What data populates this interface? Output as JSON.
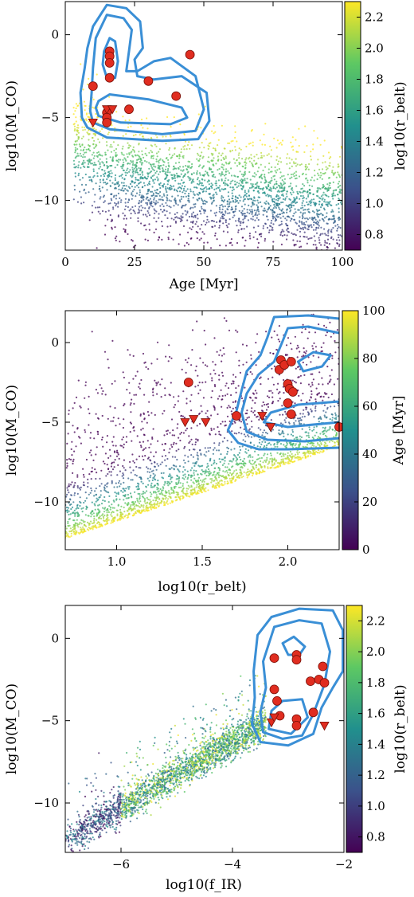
{
  "colors": {
    "contour": "#3a8fd6",
    "marker_fill": "#e02d20",
    "marker_edge": "#7a1008",
    "colormap": [
      "#440154",
      "#3b528b",
      "#21908d",
      "#5dc863",
      "#fde725"
    ]
  },
  "chart_data": [
    {
      "type": "scatter",
      "xlabel": "Age [Myr]",
      "ylabel": "log10(M_CO)",
      "colorbar_label": "log10(r_belt)",
      "xlim": [
        0,
        100
      ],
      "ylim": [
        -13,
        2
      ],
      "x_ticks": [
        "0",
        "25",
        "50",
        "75",
        "100"
      ],
      "x_tick_values": [
        0,
        25,
        50,
        75,
        100
      ],
      "y_ticks": [
        "0",
        "−5",
        "−10"
      ],
      "y_tick_values": [
        0,
        -5,
        -10
      ],
      "colorbar_range": [
        0.7,
        2.3
      ],
      "colorbar_ticks": [
        "2.2",
        "2.0",
        "1.8",
        "1.6",
        "1.4",
        "1.2",
        "1.0",
        "0.8"
      ],
      "colorbar_tick_values": [
        2.2,
        2.0,
        1.8,
        1.6,
        1.4,
        1.2,
        1.0,
        0.8
      ],
      "detections": [
        [
          16,
          -1.0
        ],
        [
          16,
          -1.3
        ],
        [
          16,
          -1.7
        ],
        [
          16,
          -2.6
        ],
        [
          10,
          -3.1
        ],
        [
          30,
          -2.8
        ],
        [
          45,
          -1.2
        ],
        [
          40,
          -3.7
        ],
        [
          23,
          -4.5
        ],
        [
          15,
          -4.7
        ],
        [
          15,
          -5.0
        ],
        [
          15,
          -5.3
        ]
      ],
      "upper_limits": [
        [
          10,
          -5.3
        ],
        [
          15,
          -4.5
        ],
        [
          17,
          -4.5
        ]
      ],
      "contours": [
        [
          [
            10,
            0.5
          ],
          [
            15,
            1.8
          ],
          [
            22,
            1.6
          ],
          [
            27,
            0.8
          ],
          [
            28,
            -0.8
          ],
          [
            25,
            -1.5
          ],
          [
            26,
            -2.5
          ],
          [
            32,
            -2.7
          ],
          [
            42,
            -2.5
          ],
          [
            51,
            -3.5
          ],
          [
            52,
            -5.2
          ],
          [
            48,
            -6.3
          ],
          [
            35,
            -6.4
          ],
          [
            15,
            -6.2
          ],
          [
            8,
            -5.6
          ],
          [
            6,
            -5.0
          ],
          [
            5.5,
            -3.5
          ],
          [
            7,
            -2.0
          ],
          [
            8,
            -0.8
          ],
          [
            10,
            0.5
          ]
        ],
        [
          [
            11,
            -0.2
          ],
          [
            15,
            1.2
          ],
          [
            21,
            1.0
          ],
          [
            24,
            0.3
          ],
          [
            23,
            -1.0
          ],
          [
            22,
            -2.2
          ],
          [
            26,
            -2.2
          ],
          [
            32,
            -1.6
          ],
          [
            38,
            -1.4
          ],
          [
            47,
            -2.5
          ],
          [
            50,
            -4.5
          ],
          [
            47,
            -5.8
          ],
          [
            35,
            -6.0
          ],
          [
            16,
            -5.7
          ],
          [
            10,
            -5.3
          ],
          [
            9,
            -4.6
          ],
          [
            9.5,
            -3.5
          ],
          [
            10,
            -2.0
          ],
          [
            11,
            -0.2
          ]
        ],
        [
          [
            14,
            -1.0
          ],
          [
            16,
            -0.2
          ],
          [
            18,
            -0.4
          ],
          [
            19,
            -1.6
          ],
          [
            18,
            -2.6
          ],
          [
            15,
            -2.6
          ],
          [
            13.5,
            -1.8
          ],
          [
            14,
            -1.0
          ]
        ],
        [
          [
            12,
            -4.0
          ],
          [
            16,
            -3.6
          ],
          [
            30,
            -3.9
          ],
          [
            42,
            -4.4
          ],
          [
            44,
            -5.0
          ],
          [
            38,
            -5.4
          ],
          [
            20,
            -5.3
          ],
          [
            12,
            -4.9
          ],
          [
            11,
            -4.4
          ],
          [
            12,
            -4.0
          ]
        ]
      ]
    },
    {
      "type": "scatter",
      "xlabel": "log10(r_belt)",
      "ylabel": "log10(M_CO)",
      "colorbar_label": "Age [Myr]",
      "xlim": [
        0.7,
        2.3
      ],
      "ylim": [
        -13,
        2
      ],
      "x_ticks": [
        "1.0",
        "1.5",
        "2.0"
      ],
      "x_tick_values": [
        1.0,
        1.5,
        2.0
      ],
      "y_ticks": [
        "0",
        "−5",
        "−10"
      ],
      "y_tick_values": [
        0,
        -5,
        -10
      ],
      "colorbar_range": [
        0,
        100
      ],
      "colorbar_ticks": [
        "100",
        "80",
        "60",
        "40",
        "20",
        "0"
      ],
      "colorbar_tick_values": [
        100,
        80,
        60,
        40,
        20,
        0
      ],
      "detections": [
        [
          1.42,
          -2.5
        ],
        [
          1.7,
          -4.6
        ],
        [
          1.96,
          -1.1
        ],
        [
          1.95,
          -1.7
        ],
        [
          1.98,
          -1.4
        ],
        [
          2.02,
          -1.2
        ],
        [
          2.0,
          -2.6
        ],
        [
          2.01,
          -2.9
        ],
        [
          2.03,
          -3.1
        ],
        [
          2.0,
          -3.8
        ],
        [
          2.02,
          -4.5
        ],
        [
          2.3,
          -5.3
        ]
      ],
      "upper_limits": [
        [
          1.4,
          -5.0
        ],
        [
          1.45,
          -4.8
        ],
        [
          1.52,
          -5.0
        ],
        [
          1.85,
          -4.6
        ],
        [
          1.9,
          -5.3
        ]
      ],
      "contours": [
        [
          [
            2.3,
            1.5
          ],
          [
            2.12,
            1.7
          ],
          [
            1.92,
            1.6
          ],
          [
            1.88,
            0.3
          ],
          [
            1.84,
            -0.8
          ],
          [
            1.76,
            -1.8
          ],
          [
            1.73,
            -3.0
          ],
          [
            1.7,
            -4.3
          ],
          [
            1.65,
            -5.5
          ],
          [
            1.71,
            -6.3
          ],
          [
            1.83,
            -6.7
          ],
          [
            2.0,
            -6.7
          ],
          [
            2.3,
            -6.6
          ]
        ],
        [
          [
            2.3,
            0.6
          ],
          [
            2.12,
            1.0
          ],
          [
            2.0,
            0.9
          ],
          [
            1.97,
            0.1
          ],
          [
            1.92,
            -1.2
          ],
          [
            1.83,
            -2.0
          ],
          [
            1.76,
            -3.2
          ],
          [
            1.73,
            -4.4
          ],
          [
            1.76,
            -5.6
          ],
          [
            1.88,
            -6.1
          ],
          [
            2.1,
            -6.2
          ],
          [
            2.3,
            -6.0
          ]
        ],
        [
          [
            2.06,
            -1.2
          ],
          [
            2.15,
            -0.6
          ],
          [
            2.25,
            -0.8
          ],
          [
            2.2,
            -1.5
          ],
          [
            2.09,
            -1.8
          ],
          [
            2.06,
            -1.2
          ]
        ],
        [
          [
            2.3,
            -3.7
          ],
          [
            2.06,
            -3.9
          ],
          [
            1.9,
            -4.4
          ],
          [
            1.86,
            -5.0
          ],
          [
            2.0,
            -5.3
          ],
          [
            2.3,
            -5.0
          ]
        ]
      ]
    },
    {
      "type": "scatter",
      "xlabel": "log10(f_IR)",
      "ylabel": "log10(M_CO)",
      "colorbar_label": "log10(r_belt)",
      "xlim": [
        -7,
        -2
      ],
      "ylim": [
        -13,
        2
      ],
      "x_ticks": [
        "−6",
        "−4",
        "−2"
      ],
      "x_tick_values": [
        -6,
        -4,
        -2
      ],
      "y_ticks": [
        "0",
        "−5",
        "−10"
      ],
      "y_tick_values": [
        0,
        -5,
        -10
      ],
      "colorbar_range": [
        0.7,
        2.3
      ],
      "colorbar_ticks": [
        "2.2",
        "2.0",
        "1.8",
        "1.6",
        "1.4",
        "1.2",
        "1.0",
        "0.8"
      ],
      "colorbar_tick_values": [
        2.2,
        2.0,
        1.8,
        1.6,
        1.4,
        1.2,
        1.0,
        0.8
      ],
      "detections": [
        [
          -3.25,
          -1.2
        ],
        [
          -3.25,
          -3.1
        ],
        [
          -3.2,
          -3.8
        ],
        [
          -2.85,
          -1.0
        ],
        [
          -2.85,
          -1.3
        ],
        [
          -2.85,
          -4.9
        ],
        [
          -2.85,
          -5.3
        ],
        [
          -2.55,
          -4.5
        ],
        [
          -2.6,
          -2.6
        ],
        [
          -2.45,
          -2.5
        ],
        [
          -2.38,
          -1.7
        ],
        [
          -2.35,
          -2.7
        ],
        [
          -3.15,
          -4.7
        ]
      ],
      "upper_limits": [
        [
          -3.3,
          -5.1
        ],
        [
          -3.25,
          -4.8
        ],
        [
          -2.35,
          -5.3
        ]
      ],
      "contours": [
        [
          [
            -3.3,
            1.3
          ],
          [
            -2.8,
            1.8
          ],
          [
            -2.2,
            1.7
          ],
          [
            -2.02,
            0.5
          ],
          [
            -2.02,
            -2.0
          ],
          [
            -2.2,
            -3.0
          ],
          [
            -2.4,
            -4.2
          ],
          [
            -2.55,
            -5.8
          ],
          [
            -3.0,
            -6.5
          ],
          [
            -3.5,
            -6.3
          ],
          [
            -3.65,
            -5.2
          ],
          [
            -3.6,
            -3.6
          ],
          [
            -3.62,
            -2.0
          ],
          [
            -3.55,
            0.2
          ],
          [
            -3.3,
            1.3
          ]
        ],
        [
          [
            -3.25,
            0.7
          ],
          [
            -2.8,
            1.1
          ],
          [
            -2.4,
            0.9
          ],
          [
            -2.25,
            -0.8
          ],
          [
            -2.35,
            -2.8
          ],
          [
            -2.55,
            -4.6
          ],
          [
            -2.75,
            -5.9
          ],
          [
            -3.1,
            -6.1
          ],
          [
            -3.45,
            -5.7
          ],
          [
            -3.5,
            -4.5
          ],
          [
            -3.4,
            -3.0
          ],
          [
            -3.45,
            -1.4
          ],
          [
            -3.25,
            0.7
          ]
        ],
        [
          [
            -3.1,
            -0.3
          ],
          [
            -2.9,
            0.1
          ],
          [
            -2.7,
            -0.5
          ],
          [
            -2.8,
            -1.0
          ],
          [
            -3.0,
            -1.0
          ],
          [
            -3.1,
            -0.3
          ]
        ],
        [
          [
            -3.1,
            -3.8
          ],
          [
            -2.75,
            -3.7
          ],
          [
            -2.65,
            -4.8
          ],
          [
            -2.95,
            -5.8
          ],
          [
            -3.35,
            -5.5
          ],
          [
            -3.3,
            -4.4
          ],
          [
            -3.1,
            -3.8
          ]
        ]
      ]
    }
  ]
}
